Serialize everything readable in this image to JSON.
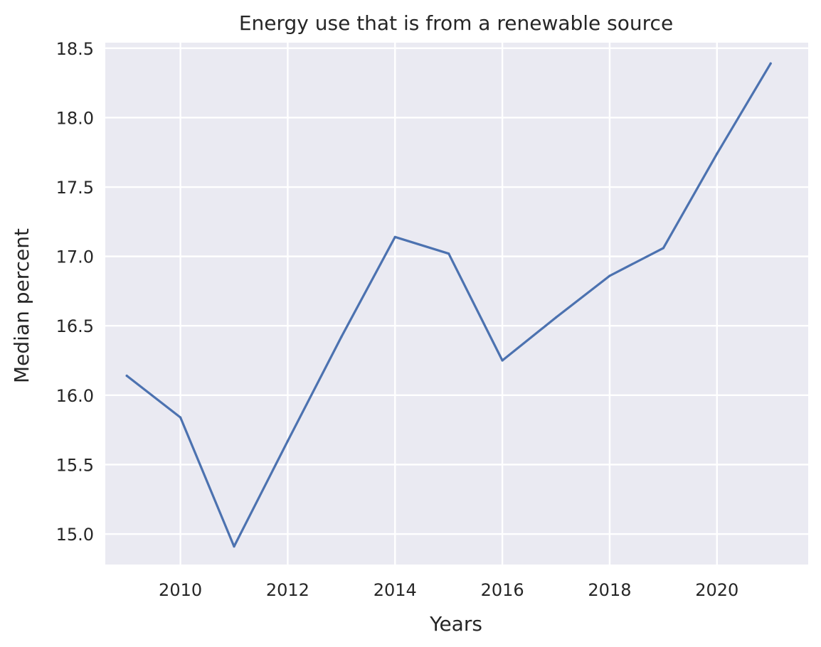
{
  "chart_data": {
    "type": "line",
    "title": "Energy use that is from a renewable source",
    "xlabel": "Years",
    "ylabel": "Median percent",
    "x": [
      2009,
      2010,
      2011,
      2012,
      2013,
      2014,
      2015,
      2016,
      2017,
      2018,
      2019,
      2020,
      2021
    ],
    "series": [
      {
        "values": [
          16.14,
          15.84,
          14.91,
          15.67,
          16.42,
          17.14,
          17.02,
          16.25,
          16.56,
          16.86,
          17.06,
          17.74,
          18.39
        ],
        "color": "#4c72b0"
      }
    ],
    "xticks": [
      2010,
      2012,
      2014,
      2016,
      2018,
      2020
    ],
    "xtick_labels": [
      "2010",
      "2012",
      "2014",
      "2016",
      "2018",
      "2020"
    ],
    "yticks": [
      15.0,
      15.5,
      16.0,
      16.5,
      17.0,
      17.5,
      18.0,
      18.5
    ],
    "ytick_labels": [
      "15.0",
      "15.5",
      "16.0",
      "16.5",
      "17.0",
      "17.5",
      "18.0",
      "18.5"
    ],
    "xlim": [
      2008.6,
      2021.7
    ],
    "ylim": [
      14.78,
      18.54
    ],
    "grid": true,
    "legend": false,
    "background_color": "#eaeaf2",
    "grid_color": "#ffffff",
    "text_color": "#262626"
  }
}
